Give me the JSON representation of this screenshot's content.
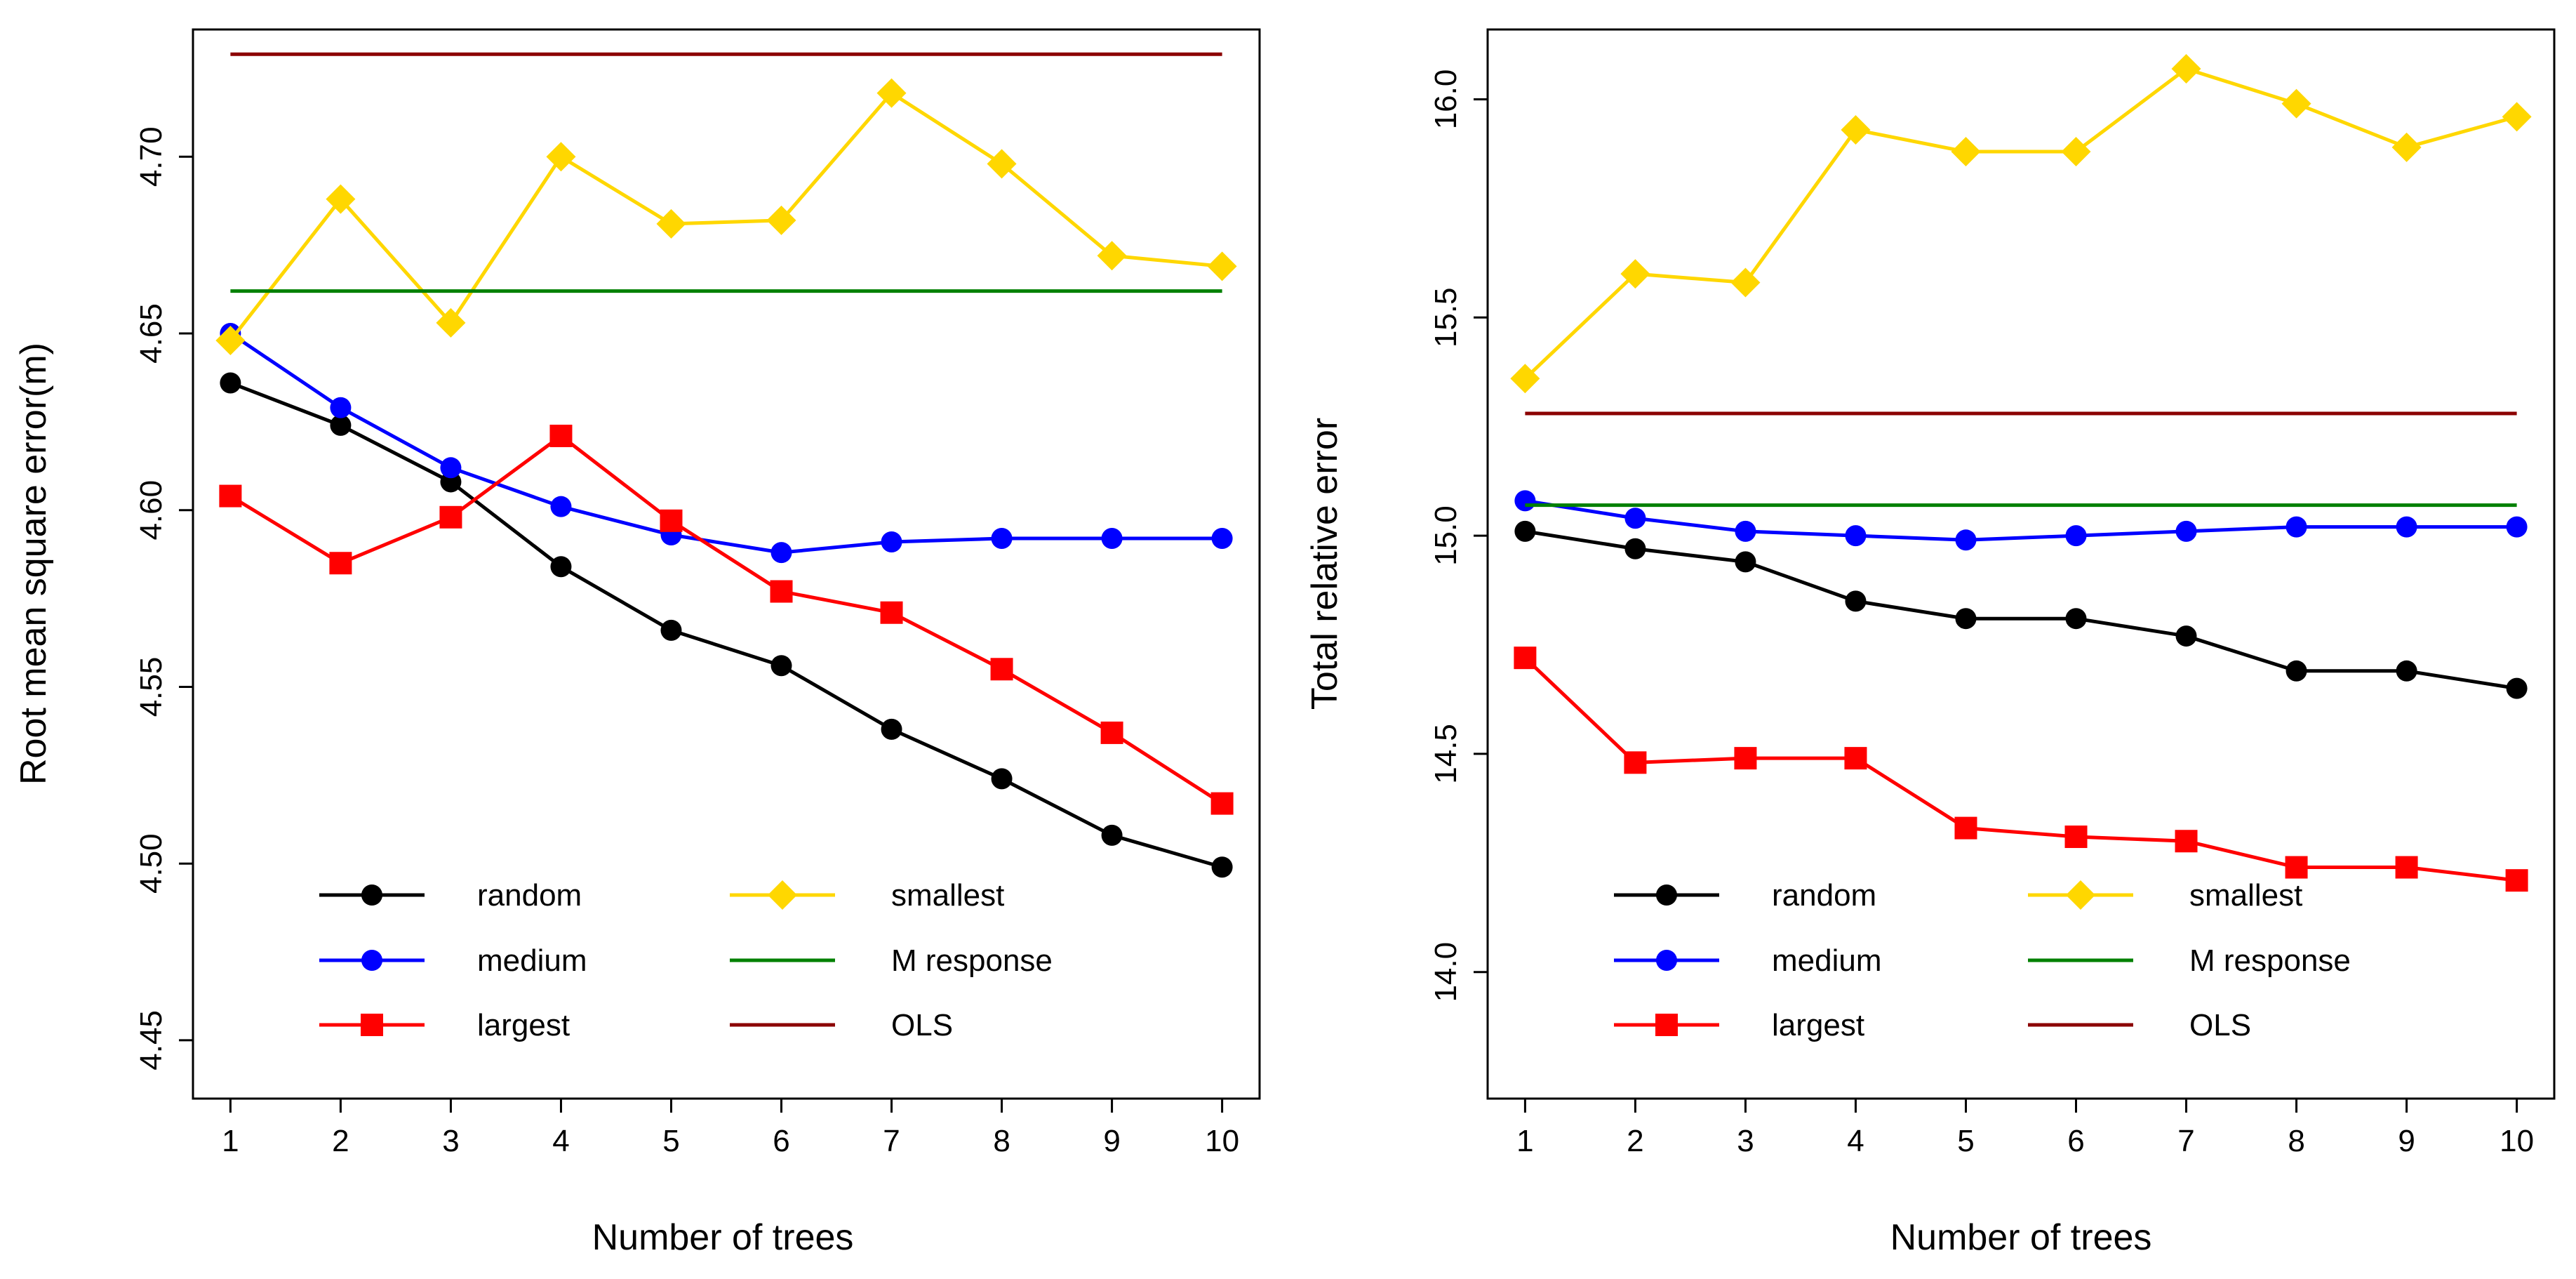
{
  "chart_data": [
    {
      "type": "line",
      "title": "",
      "xlabel": "Number of trees",
      "ylabel": "Root mean square error(m)",
      "x": [
        1,
        2,
        3,
        4,
        5,
        6,
        7,
        8,
        9,
        10
      ],
      "xlim": [
        0.66,
        10.34
      ],
      "ylim": [
        4.4335,
        4.736
      ],
      "x_ticks": [
        1,
        2,
        3,
        4,
        5,
        6,
        7,
        8,
        9,
        10
      ],
      "y_ticks": [
        4.45,
        4.5,
        4.55,
        4.6,
        4.65,
        4.7
      ],
      "y_tick_labels": [
        "4.45",
        "4.50",
        "4.55",
        "4.60",
        "4.65",
        "4.70"
      ],
      "grid": false,
      "series": [
        {
          "name": "random",
          "color": "#000000",
          "marker": "circle",
          "values": [
            4.636,
            4.624,
            4.608,
            4.584,
            4.566,
            4.556,
            4.538,
            4.524,
            4.508,
            4.499
          ]
        },
        {
          "name": "medium",
          "color": "#0000FF",
          "marker": "circle",
          "values": [
            4.65,
            4.629,
            4.612,
            4.601,
            4.593,
            4.588,
            4.591,
            4.592,
            4.592,
            4.592
          ]
        },
        {
          "name": "largest",
          "color": "#FF0000",
          "marker": "square",
          "values": [
            4.604,
            4.585,
            4.598,
            4.621,
            4.597,
            4.577,
            4.571,
            4.555,
            4.537,
            4.517
          ]
        },
        {
          "name": "smallest",
          "color": "#FFD700",
          "marker": "diamond",
          "values": [
            4.648,
            4.688,
            4.653,
            4.7,
            4.681,
            4.682,
            4.718,
            4.698,
            4.672,
            4.669
          ]
        },
        {
          "name": "M response",
          "color": "#008000",
          "marker": "none",
          "values": [
            4.662,
            4.662,
            4.662,
            4.662,
            4.662,
            4.662,
            4.662,
            4.662,
            4.662,
            4.662
          ]
        },
        {
          "name": "OLS",
          "color": "#8B0000",
          "marker": "none",
          "values": [
            4.729,
            4.729,
            4.729,
            4.729,
            4.729,
            4.729,
            4.729,
            4.729,
            4.729,
            4.729
          ]
        }
      ]
    },
    {
      "type": "line",
      "title": "",
      "xlabel": "Number of trees",
      "ylabel": "Total relative error",
      "x": [
        1,
        2,
        3,
        4,
        5,
        6,
        7,
        8,
        9,
        10
      ],
      "xlim": [
        0.66,
        10.34
      ],
      "ylim": [
        13.71,
        16.16
      ],
      "x_ticks": [
        1,
        2,
        3,
        4,
        5,
        6,
        7,
        8,
        9,
        10
      ],
      "y_ticks": [
        14.0,
        14.5,
        15.0,
        15.5,
        16.0
      ],
      "y_tick_labels": [
        "14.0",
        "14.5",
        "15.0",
        "15.5",
        "16.0"
      ],
      "grid": false,
      "series": [
        {
          "name": "random",
          "color": "#000000",
          "marker": "circle",
          "values": [
            15.01,
            14.97,
            14.94,
            14.85,
            14.81,
            14.81,
            14.77,
            14.69,
            14.69,
            14.65
          ]
        },
        {
          "name": "medium",
          "color": "#0000FF",
          "marker": "circle",
          "values": [
            15.08,
            15.04,
            15.01,
            15.0,
            14.99,
            15.0,
            15.01,
            15.02,
            15.02,
            15.02
          ]
        },
        {
          "name": "largest",
          "color": "#FF0000",
          "marker": "square",
          "values": [
            14.72,
            14.48,
            14.49,
            14.49,
            14.33,
            14.31,
            14.3,
            14.24,
            14.24,
            14.21
          ]
        },
        {
          "name": "smallest",
          "color": "#FFD700",
          "marker": "diamond",
          "values": [
            15.36,
            15.6,
            15.58,
            15.93,
            15.88,
            15.88,
            16.07,
            15.99,
            15.89,
            15.96
          ]
        },
        {
          "name": "M response",
          "color": "#008000",
          "marker": "none",
          "values": [
            15.07,
            15.07,
            15.07,
            15.07,
            15.07,
            15.07,
            15.07,
            15.07,
            15.07,
            15.07
          ]
        },
        {
          "name": "OLS",
          "color": "#8B0000",
          "marker": "none",
          "values": [
            15.28,
            15.28,
            15.28,
            15.28,
            15.28,
            15.28,
            15.28,
            15.28,
            15.28,
            15.28
          ]
        }
      ]
    }
  ]
}
